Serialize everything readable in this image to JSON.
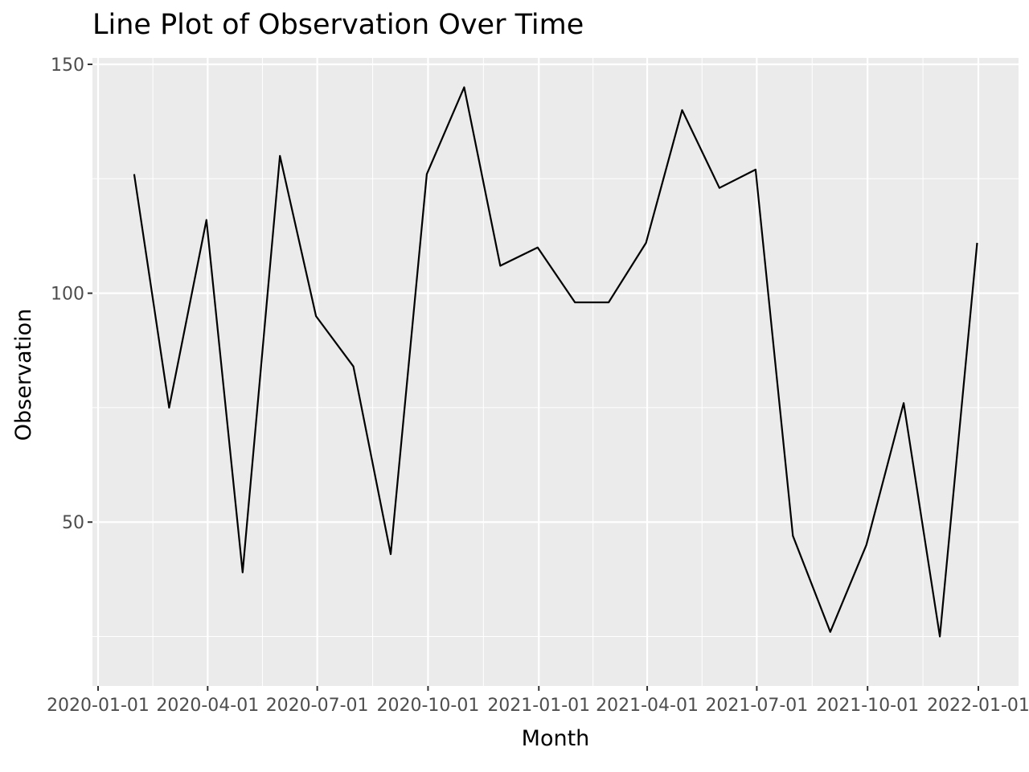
{
  "chart_data": {
    "type": "line",
    "title": "Line Plot of Observation Over Time",
    "xlabel": "Month",
    "ylabel": "Observation",
    "x_ticks": [
      "2020-01-01",
      "2020-04-01",
      "2020-07-01",
      "2020-10-01",
      "2021-01-01",
      "2021-04-01",
      "2021-07-01",
      "2021-10-01",
      "2022-01-01"
    ],
    "y_ticks": [
      50,
      100,
      150
    ],
    "ylim": [
      20,
      150
    ],
    "grid": true,
    "colors": {
      "panel": "#ebebeb",
      "grid": "#ffffff",
      "line": "#000000",
      "tick_text": "#4d4d4d"
    },
    "series": [
      {
        "x": [
          "2020-01-31",
          "2020-02-29",
          "2020-03-31",
          "2020-04-30",
          "2020-05-31",
          "2020-06-30",
          "2020-07-31",
          "2020-08-31",
          "2020-09-30",
          "2020-10-31",
          "2020-11-30",
          "2020-12-31",
          "2021-01-31",
          "2021-02-28",
          "2021-03-31",
          "2021-04-30",
          "2021-05-31",
          "2021-06-30",
          "2021-07-31",
          "2021-08-31",
          "2021-09-30",
          "2021-10-31",
          "2021-11-30",
          "2021-12-31"
        ],
        "values": [
          126,
          75,
          116,
          39,
          130,
          95,
          84,
          43,
          126,
          145,
          106,
          110,
          98,
          98,
          111,
          140,
          123,
          127,
          47,
          26,
          45,
          76,
          25,
          111
        ]
      }
    ]
  }
}
